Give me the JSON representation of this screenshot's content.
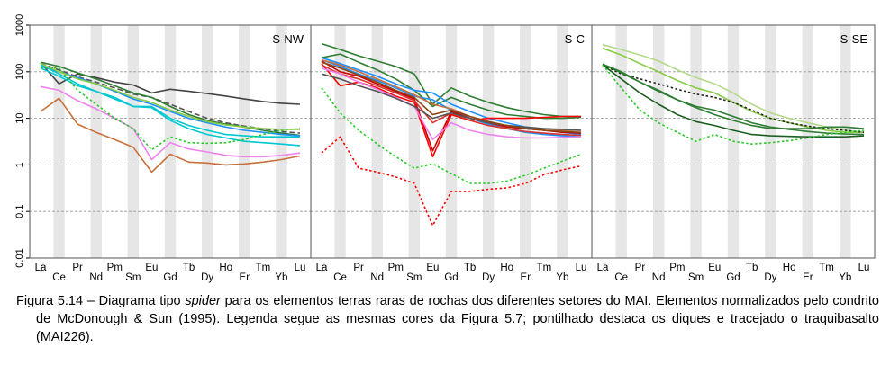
{
  "chart_data": {
    "type": "line",
    "yscale": "log",
    "ylim": [
      0.01,
      1000
    ],
    "yticks": [
      "0.01",
      "0.1",
      "1",
      "10",
      "100",
      "1000"
    ],
    "categories": [
      "La",
      "Ce",
      "Pr",
      "Nd",
      "Pm",
      "Sm",
      "Eu",
      "Gd",
      "Tb",
      "Dy",
      "Ho",
      "Er",
      "Tm",
      "Yb",
      "Lu"
    ],
    "panels": [
      {
        "label": "S-NW",
        "series": [
          {
            "color": "#444444",
            "style": "solid",
            "values": [
              155,
              55,
              90,
              75,
              60,
              52,
              35,
              42,
              38,
              34,
              30,
              26,
              23,
              21,
              20
            ]
          },
          {
            "color": "#555555",
            "style": "dashed",
            "values": [
              150,
              110,
              78,
              60,
              45,
              33,
              28,
              20,
              14,
              10,
              8,
              6.8,
              6,
              5.2,
              4.8
            ]
          },
          {
            "color": "#2e7d32",
            "style": "solid",
            "values": [
              160,
              130,
              95,
              70,
              50,
              35,
              28,
              18,
              12,
              9,
              7.5,
              6.5,
              5.5,
              4.8,
              4.3
            ]
          },
          {
            "color": "#1e90ff",
            "style": "solid",
            "values": [
              130,
              100,
              75,
              55,
              38,
              26,
              20,
              14,
              10,
              8,
              6.5,
              5.5,
              5,
              4.5,
              4.2
            ]
          },
          {
            "color": "#00c8d2",
            "style": "solid",
            "values": [
              120,
              80,
              50,
              38,
              28,
              18,
              18,
              10,
              7,
              5.5,
              4.5,
              4.2,
              4,
              4,
              4
            ]
          },
          {
            "color": "#00c8d2",
            "style": "solid",
            "values": [
              140,
              90,
              55,
              38,
              26,
              18,
              17,
              9,
              6,
              4.5,
              3.8,
              3.2,
              3,
              2.8,
              2.6
            ]
          },
          {
            "color": "#ee82ee",
            "style": "solid",
            "values": [
              48,
              40,
              24,
              16,
              10,
              6,
              1.3,
              3,
              2.2,
              1.9,
              1.6,
              1.5,
              1.5,
              1.6,
              1.8
            ]
          },
          {
            "color": "#c8703c",
            "style": "solid",
            "values": [
              14,
              27,
              7.5,
              5,
              3.5,
              2.4,
              0.7,
              1.7,
              1.15,
              1.1,
              1.0,
              1.05,
              1.15,
              1.3,
              1.55
            ]
          },
          {
            "color": "#22cc22",
            "style": "dotted",
            "values": [
              120,
              120,
              40,
              20,
              10,
              6,
              2.1,
              4,
              3,
              2.9,
              3,
              3.5,
              4.5,
              5.5,
              6
            ]
          },
          {
            "color": "#88cc44",
            "style": "solid",
            "values": [
              150,
              100,
              70,
              55,
              40,
              28,
              22,
              15,
              11,
              8.5,
              7.2,
              6.5,
              6,
              5.8,
              5.8
            ]
          }
        ]
      },
      {
        "label": "S-C",
        "series": [
          {
            "color": "#2e7d32",
            "style": "solid",
            "values": [
              400,
              300,
              220,
              170,
              130,
              90,
              20,
              45,
              30,
              22,
              17,
              14,
              12,
              11,
              11
            ]
          },
          {
            "color": "#2e7d32",
            "style": "solid",
            "values": [
              200,
              240,
              160,
              110,
              70,
              40,
              18,
              28,
              20,
              15,
              12,
              11,
              10,
              10,
              10.5
            ]
          },
          {
            "color": "#1e90ff",
            "style": "solid",
            "values": [
              200,
              150,
              110,
              80,
              55,
              40,
              35,
              20,
              14,
              10,
              8,
              6.5,
              5.5,
              5,
              4.5
            ]
          },
          {
            "color": "#1e90ff",
            "style": "solid",
            "values": [
              180,
              130,
              90,
              65,
              45,
              30,
              25,
              15,
              10,
              7.5,
              6,
              5,
              4.5,
              4.2,
              4
            ]
          },
          {
            "color": "#c8703c",
            "style": "solid",
            "values": [
              180,
              140,
              100,
              70,
              48,
              32,
              20,
              16,
              11,
              8.5,
              7,
              6,
              5.5,
              5.5,
              5.5
            ]
          },
          {
            "color": "#ff0000",
            "style": "solid",
            "values": [
              150,
              50,
              60,
              45,
              30,
              22,
              1.5,
              12,
              9,
              10,
              10,
              10,
              10.5,
              11,
              11
            ]
          },
          {
            "color": "#cc0000",
            "style": "solid",
            "values": [
              170,
              100,
              80,
              55,
              38,
              26,
              2,
              14,
              10,
              8,
              6.5,
              6,
              5.5,
              5,
              4.8
            ]
          },
          {
            "color": "#d9342b",
            "style": "solid",
            "values": [
              140,
              90,
              70,
              50,
              35,
              24,
              8,
              13,
              9,
              7,
              6,
              5.2,
              4.8,
              4.5,
              4.3
            ]
          },
          {
            "color": "#ee82ee",
            "style": "solid",
            "values": [
              120,
              90,
              60,
              42,
              28,
              18,
              3.5,
              8,
              5.5,
              4.5,
              4,
              3.8,
              3.8,
              3.9,
              4
            ]
          },
          {
            "color": "#555555",
            "style": "solid",
            "values": [
              90,
              70,
              50,
              38,
              27,
              18,
              10,
              13,
              10,
              8,
              7,
              6.5,
              6,
              5.8,
              5.5
            ]
          },
          {
            "color": "#8b4513",
            "style": "solid",
            "values": [
              160,
              120,
              85,
              60,
              40,
              28,
              12,
              15,
              11,
              8.5,
              7,
              6,
              5.5,
              5.2,
              5
            ]
          },
          {
            "color": "#22cc22",
            "style": "dotted",
            "values": [
              45,
              13,
              5.5,
              2.8,
              1.5,
              0.85,
              1.05,
              0.65,
              0.4,
              0.4,
              0.45,
              0.6,
              0.85,
              1.2,
              1.7
            ]
          },
          {
            "color": "#ff0000",
            "style": "dotted",
            "values": [
              1.8,
              4,
              0.85,
              0.7,
              0.55,
              0.4,
              0.05,
              0.27,
              0.27,
              0.3,
              0.32,
              0.4,
              0.62,
              0.78,
              0.95
            ]
          }
        ]
      },
      {
        "label": "S-SE",
        "series": [
          {
            "color": "#b5d98a",
            "style": "solid",
            "values": [
              380,
              300,
              230,
              170,
              110,
              75,
              55,
              35,
              20,
              13,
              10,
              8,
              6.5,
              5.5,
              5
            ]
          },
          {
            "color": "#88cc44",
            "style": "solid",
            "values": [
              320,
              230,
              150,
              100,
              65,
              45,
              35,
              22,
              14,
              10,
              8,
              6.5,
              5.5,
              5,
              5
            ]
          },
          {
            "color": "#222222",
            "style": "dotted",
            "values": [
              140,
              90,
              70,
              55,
              42,
              33,
              28,
              22,
              15,
              10,
              8,
              6.8,
              6,
              5.5,
              5
            ]
          },
          {
            "color": "#2e7d32",
            "style": "solid",
            "values": [
              145,
              95,
              60,
              40,
              25,
              18,
              15,
              11,
              8,
              6.5,
              5.8,
              5.2,
              4.8,
              4.6,
              4.5
            ]
          },
          {
            "color": "#1b5e20",
            "style": "solid",
            "values": [
              140,
              70,
              35,
              20,
              12,
              8.5,
              7,
              5.5,
              4.5,
              4.2,
              4.1,
              4,
              4,
              4,
              4.2
            ]
          },
          {
            "color": "#2e7d32",
            "style": "solid",
            "values": [
              145,
              100,
              60,
              38,
              25,
              17,
              12,
              9,
              7,
              6,
              6,
              6,
              6.5,
              6.5,
              6
            ]
          },
          {
            "color": "#22cc22",
            "style": "dotted",
            "values": [
              140,
              45,
              15,
              8,
              5,
              3.2,
              4.5,
              3.2,
              2.8,
              3,
              3.3,
              3.8,
              4.5,
              5,
              5.5
            ]
          }
        ]
      }
    ]
  },
  "caption": {
    "label": "Figura 5.14",
    "text_a": " – Diagrama tipo ",
    "spider": "spider",
    "text_b": " para os elementos terras raras de rochas dos diferentes setores do MAI. Elementos normalizados pelo condrito de McDonough & Sun (1995). Legenda segue as mesmas cores da Figura 5.7; pontilhado destaca os diques e tracejado o traquibasalto (MAI226)."
  }
}
